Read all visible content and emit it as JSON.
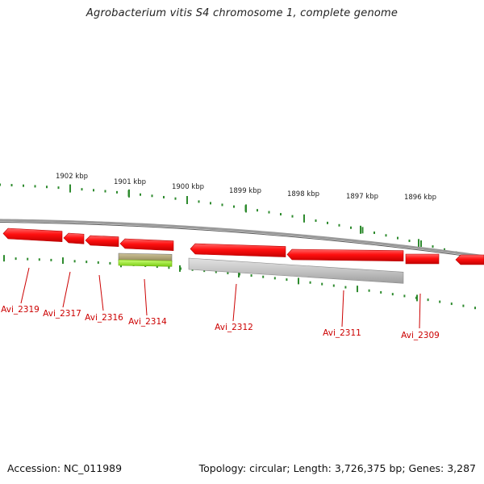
{
  "title": "Agrobacterium vitis S4 chromosome 1, complete genome",
  "accession_text": "Accession: NC_011989",
  "summary_text": "Topology: circular; Length: 3,726,375 bp; Genes: 3,287",
  "colors": {
    "tick": "#2e8b2e",
    "gene": "#ff0000",
    "gene_dark": "#b80000",
    "label": "#cc0000",
    "backbone": "#888888",
    "pseudo_gray": "#bdbdbd",
    "rna_olive": "#a8a070",
    "rna_green": "#99ee33"
  },
  "scale_labels": [
    "1902 kbp",
    "1901 kbp",
    "1900 kbp",
    "1899 kbp",
    "1898 kbp",
    "1897 kbp",
    "1896 kbp"
  ],
  "gene_labels": [
    "Avi_2319",
    "Avi_2317",
    "Avi_2316",
    "Avi_2314",
    "Avi_2312",
    "Avi_2311",
    "Avi_2309"
  ]
}
